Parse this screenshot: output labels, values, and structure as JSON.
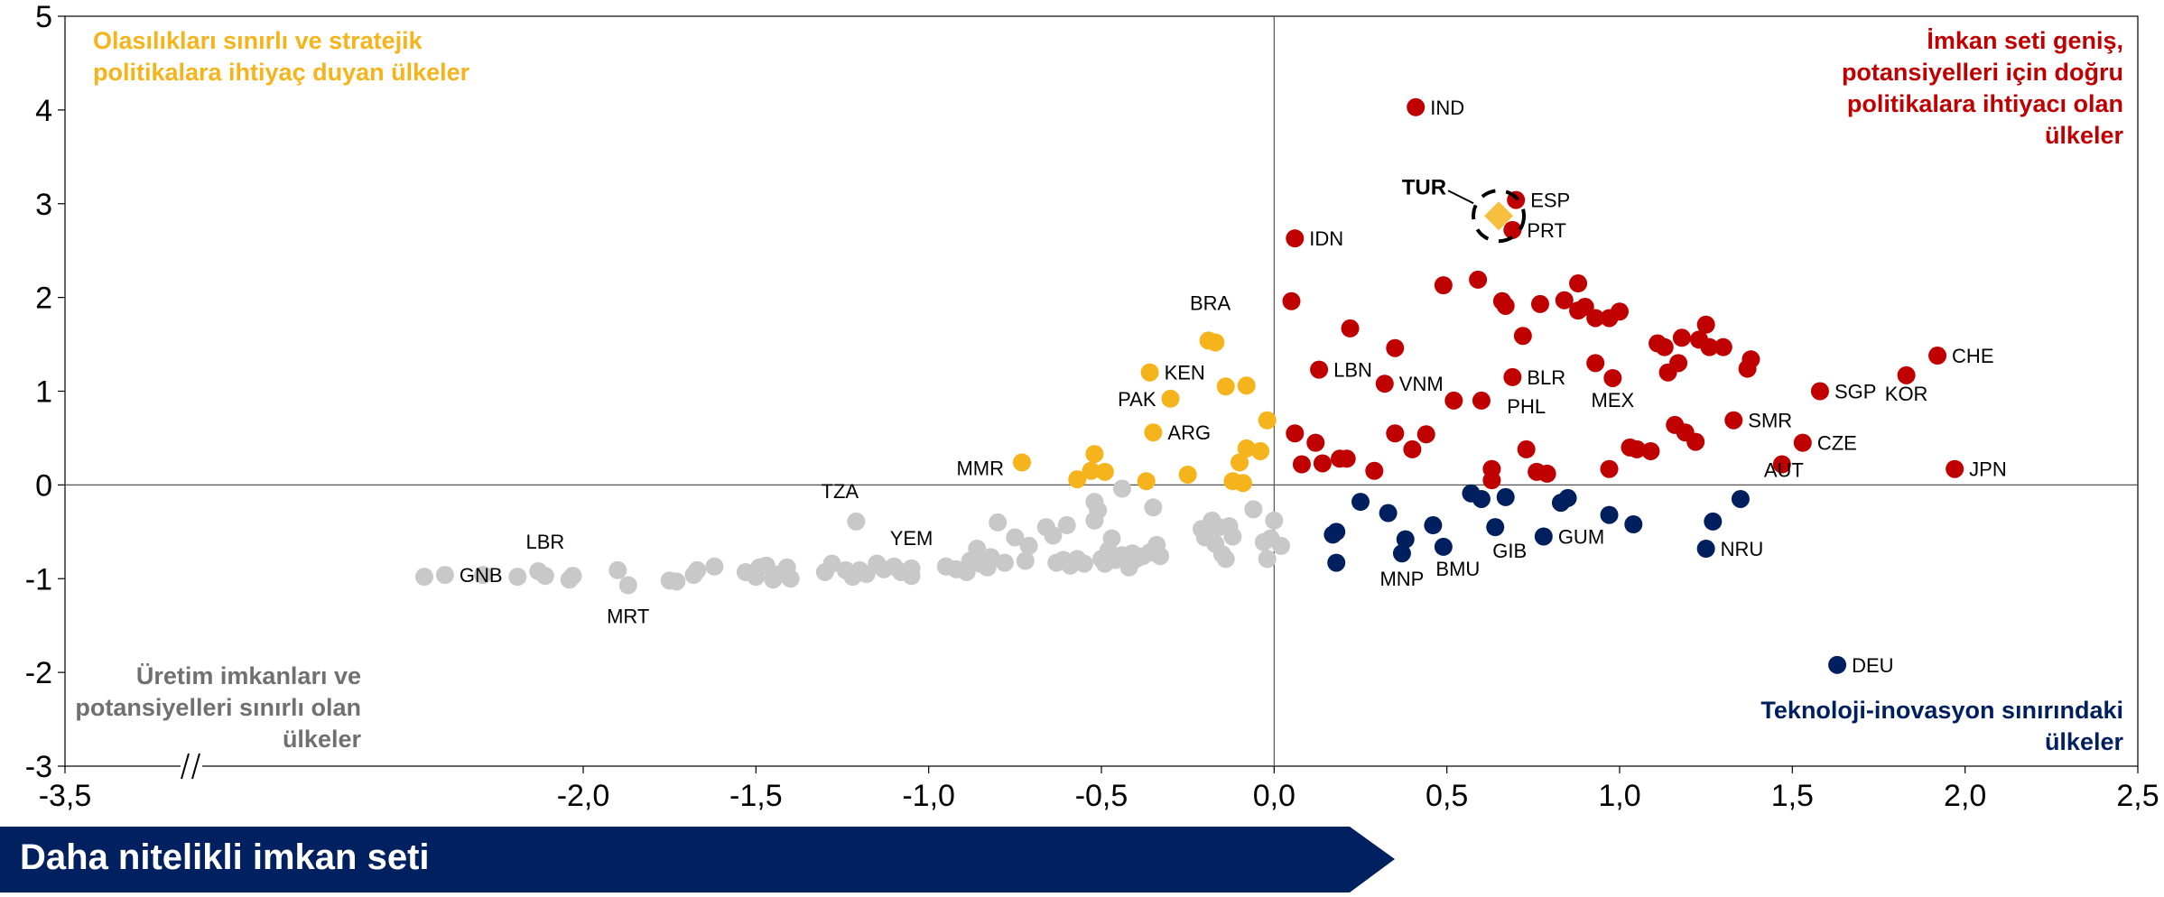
{
  "chart_data": {
    "type": "scatter",
    "xlim": [
      -3.5,
      2.5
    ],
    "ylim": [
      -3,
      5
    ],
    "x_ticks": [
      "-3,5",
      "-2,0",
      "-1,5",
      "-1,0",
      "-0,5",
      "0,0",
      "0,5",
      "1,0",
      "1,5",
      "2,0",
      "2,5"
    ],
    "y_ticks": [
      "5",
      "4",
      "3",
      "2",
      "1",
      "0",
      "-1",
      "-2",
      "-3"
    ],
    "axis_break_symbol": "//",
    "colors": {
      "yellow": "#f5b41c",
      "red": "#c00000",
      "navy": "#001f5f",
      "gray": "#c8c8c8"
    },
    "quadrant_labels": {
      "top_left": "Olasılıkları sınırlı ve stratejik politikalara ihtiyaç duyan ülkeler",
      "top_right": "İmkan seti geniş, potansiyelleri için doğru politikalara ihtiyacı olan ülkeler",
      "bottom_left": "Üretim imkanları ve potansiyelleri sınırlı olan ülkeler",
      "bottom_right": "Teknoloji-inovasyon sınırındaki ülkeler"
    },
    "highlight": {
      "label": "TUR",
      "x": 0.65,
      "y": 2.87
    },
    "labeled_points": [
      {
        "label": "IND",
        "x": 0.41,
        "y": 4.03,
        "group": "red"
      },
      {
        "label": "ESP",
        "x": 0.7,
        "y": 3.04,
        "group": "red"
      },
      {
        "label": "PRT",
        "x": 0.69,
        "y": 2.72,
        "group": "red"
      },
      {
        "label": "IDN",
        "x": 0.06,
        "y": 2.63,
        "group": "red"
      },
      {
        "label": "LBN",
        "x": 0.13,
        "y": 1.23,
        "group": "red"
      },
      {
        "label": "VNM",
        "x": 0.32,
        "y": 1.08,
        "group": "red"
      },
      {
        "label": "BLR",
        "x": 0.69,
        "y": 1.15,
        "group": "red"
      },
      {
        "label": "MEX",
        "x": 0.98,
        "y": 1.14,
        "group": "red"
      },
      {
        "label": "CHE",
        "x": 1.92,
        "y": 1.38,
        "group": "red"
      },
      {
        "label": "SGP",
        "x": 1.58,
        "y": 1.0,
        "group": "red"
      },
      {
        "label": "KOR",
        "x": 1.83,
        "y": 1.17,
        "group": "red"
      },
      {
        "label": "SMR",
        "x": 1.33,
        "y": 0.69,
        "group": "red"
      },
      {
        "label": "CZE",
        "x": 1.53,
        "y": 0.45,
        "group": "red"
      },
      {
        "label": "JPN",
        "x": 1.97,
        "y": 0.17,
        "group": "red"
      },
      {
        "label": "AUT",
        "x": 1.47,
        "y": 0.22,
        "group": "red"
      },
      {
        "label": "PHL",
        "x": 0.73,
        "y": 0.38,
        "group": "red"
      },
      {
        "label": "BRA",
        "x": -0.19,
        "y": 1.54,
        "group": "yellow"
      },
      {
        "label": "KEN",
        "x": -0.36,
        "y": 1.2,
        "group": "yellow"
      },
      {
        "label": "PAK",
        "x": -0.3,
        "y": 0.92,
        "group": "yellow"
      },
      {
        "label": "ARG",
        "x": -0.35,
        "y": 0.56,
        "group": "yellow"
      },
      {
        "label": "MMR",
        "x": -0.73,
        "y": 0.24,
        "group": "yellow"
      },
      {
        "label": "MNP",
        "x": 0.37,
        "y": -0.73,
        "group": "navy"
      },
      {
        "label": "BMU",
        "x": 0.49,
        "y": -0.66,
        "group": "navy"
      },
      {
        "label": "GIB",
        "x": 0.64,
        "y": -0.45,
        "group": "navy"
      },
      {
        "label": "GUM",
        "x": 0.78,
        "y": -0.55,
        "group": "navy"
      },
      {
        "label": "NRU",
        "x": 1.25,
        "y": -0.68,
        "group": "navy"
      },
      {
        "label": "DEU",
        "x": 1.63,
        "y": -1.92,
        "group": "navy"
      },
      {
        "label": "TZA",
        "x": -1.21,
        "y": -0.39,
        "group": "gray"
      },
      {
        "label": "YEM",
        "x": -1.05,
        "y": -0.89,
        "group": "gray"
      },
      {
        "label": "LBR",
        "x": -2.11,
        "y": -0.97,
        "group": "gray"
      },
      {
        "label": "GNB",
        "x": -2.4,
        "y": -0.96,
        "group": "gray"
      },
      {
        "label": "MRT",
        "x": -1.87,
        "y": -1.07,
        "group": "gray"
      }
    ],
    "red_points": [
      [
        0.05,
        1.96
      ],
      [
        0.22,
        1.67
      ],
      [
        0.35,
        1.46
      ],
      [
        0.49,
        2.13
      ],
      [
        0.59,
        2.19
      ],
      [
        0.66,
        1.96
      ],
      [
        0.67,
        1.91
      ],
      [
        0.72,
        1.59
      ],
      [
        0.77,
        1.93
      ],
      [
        0.84,
        1.97
      ],
      [
        0.88,
        2.15
      ],
      [
        0.88,
        1.86
      ],
      [
        0.9,
        1.9
      ],
      [
        0.93,
        1.78
      ],
      [
        0.97,
        1.78
      ],
      [
        1.0,
        1.85
      ],
      [
        0.93,
        1.3
      ],
      [
        1.11,
        1.51
      ],
      [
        1.13,
        1.47
      ],
      [
        1.14,
        1.2
      ],
      [
        1.17,
        1.3
      ],
      [
        1.18,
        1.57
      ],
      [
        1.23,
        1.55
      ],
      [
        1.25,
        1.71
      ],
      [
        1.26,
        1.47
      ],
      [
        1.3,
        1.47
      ],
      [
        1.37,
        1.24
      ],
      [
        1.38,
        1.34
      ],
      [
        0.52,
        0.9
      ],
      [
        0.6,
        0.9
      ],
      [
        0.06,
        0.55
      ],
      [
        0.08,
        0.22
      ],
      [
        0.12,
        0.45
      ],
      [
        0.14,
        0.23
      ],
      [
        0.19,
        0.28
      ],
      [
        0.21,
        0.28
      ],
      [
        0.29,
        0.15
      ],
      [
        0.35,
        0.55
      ],
      [
        0.4,
        0.38
      ],
      [
        0.44,
        0.54
      ],
      [
        0.63,
        0.17
      ],
      [
        0.63,
        0.05
      ],
      [
        0.76,
        0.14
      ],
      [
        0.79,
        0.12
      ],
      [
        0.97,
        0.17
      ],
      [
        1.03,
        0.4
      ],
      [
        1.05,
        0.38
      ],
      [
        1.09,
        0.36
      ],
      [
        1.16,
        0.64
      ],
      [
        1.19,
        0.56
      ],
      [
        1.22,
        0.46
      ]
    ],
    "navy_points": [
      [
        0.17,
        -0.53
      ],
      [
        0.18,
        -0.83
      ],
      [
        0.18,
        -0.5
      ],
      [
        0.25,
        -0.18
      ],
      [
        0.33,
        -0.3
      ],
      [
        0.38,
        -0.58
      ],
      [
        0.46,
        -0.43
      ],
      [
        0.57,
        -0.09
      ],
      [
        0.6,
        -0.15
      ],
      [
        0.67,
        -0.13
      ],
      [
        0.83,
        -0.19
      ],
      [
        0.85,
        -0.14
      ],
      [
        0.97,
        -0.32
      ],
      [
        1.04,
        -0.42
      ],
      [
        1.27,
        -0.39
      ],
      [
        1.35,
        -0.15
      ]
    ],
    "yellow_points": [
      [
        -0.52,
        0.33
      ],
      [
        -0.53,
        0.15
      ],
      [
        -0.49,
        0.14
      ],
      [
        -0.57,
        0.06
      ],
      [
        -0.37,
        0.04
      ],
      [
        -0.25,
        0.11
      ],
      [
        -0.17,
        1.52
      ],
      [
        -0.14,
        1.05
      ],
      [
        -0.08,
        1.06
      ],
      [
        -0.12,
        0.04
      ],
      [
        -0.1,
        0.24
      ],
      [
        -0.09,
        0.02
      ],
      [
        -0.08,
        0.39
      ],
      [
        -0.04,
        0.36
      ],
      [
        -0.02,
        0.69
      ]
    ],
    "gray_points": [
      [
        -2.46,
        -0.98
      ],
      [
        -2.29,
        -0.96
      ],
      [
        -2.19,
        -0.98
      ],
      [
        -2.13,
        -0.92
      ],
      [
        -2.04,
        -1.01
      ],
      [
        -2.03,
        -0.97
      ],
      [
        -1.9,
        -0.91
      ],
      [
        -1.75,
        -1.02
      ],
      [
        -1.73,
        -1.03
      ],
      [
        -1.68,
        -0.96
      ],
      [
        -1.67,
        -0.91
      ],
      [
        -1.62,
        -0.87
      ],
      [
        -1.53,
        -0.93
      ],
      [
        -1.5,
        -0.98
      ],
      [
        -1.49,
        -0.88
      ],
      [
        -1.47,
        -0.86
      ],
      [
        -1.45,
        -1.01
      ],
      [
        -1.43,
        -0.95
      ],
      [
        -1.41,
        -0.88
      ],
      [
        -1.4,
        -1.0
      ],
      [
        -1.3,
        -0.93
      ],
      [
        -1.28,
        -0.84
      ],
      [
        -1.24,
        -0.91
      ],
      [
        -1.22,
        -0.98
      ],
      [
        -1.2,
        -0.91
      ],
      [
        -1.18,
        -0.95
      ],
      [
        -1.15,
        -0.84
      ],
      [
        -1.13,
        -0.9
      ],
      [
        -1.1,
        -0.87
      ],
      [
        -1.08,
        -0.93
      ],
      [
        -1.05,
        -0.97
      ],
      [
        -0.95,
        -0.87
      ],
      [
        -0.92,
        -0.9
      ],
      [
        -0.89,
        -0.93
      ],
      [
        -0.88,
        -0.81
      ],
      [
        -0.86,
        -0.68
      ],
      [
        -0.85,
        -0.84
      ],
      [
        -0.83,
        -0.88
      ],
      [
        -0.82,
        -0.77
      ],
      [
        -0.8,
        -0.4
      ],
      [
        -0.78,
        -0.83
      ],
      [
        -0.75,
        -0.56
      ],
      [
        -0.72,
        -0.81
      ],
      [
        -0.71,
        -0.65
      ],
      [
        -0.66,
        -0.45
      ],
      [
        -0.64,
        -0.54
      ],
      [
        -0.63,
        -0.83
      ],
      [
        -0.61,
        -0.8
      ],
      [
        -0.6,
        -0.43
      ],
      [
        -0.59,
        -0.86
      ],
      [
        -0.57,
        -0.79
      ],
      [
        -0.55,
        -0.84
      ],
      [
        -0.52,
        -0.18
      ],
      [
        -0.52,
        -0.38
      ],
      [
        -0.51,
        -0.27
      ],
      [
        -0.5,
        -0.79
      ],
      [
        -0.49,
        -0.84
      ],
      [
        -0.48,
        -0.7
      ],
      [
        -0.47,
        -0.57
      ],
      [
        -0.46,
        -0.8
      ],
      [
        -0.44,
        -0.75
      ],
      [
        -0.42,
        -0.88
      ],
      [
        -0.41,
        -0.73
      ],
      [
        -0.4,
        -0.79
      ],
      [
        -0.38,
        -0.76
      ],
      [
        -0.36,
        -0.72
      ],
      [
        -0.35,
        -0.24
      ],
      [
        -0.34,
        -0.64
      ],
      [
        -0.33,
        -0.76
      ],
      [
        -0.21,
        -0.47
      ],
      [
        -0.2,
        -0.56
      ],
      [
        -0.18,
        -0.38
      ],
      [
        -0.17,
        -0.63
      ],
      [
        -0.16,
        -0.45
      ],
      [
        -0.15,
        -0.74
      ],
      [
        -0.14,
        -0.79
      ],
      [
        -0.13,
        -0.44
      ],
      [
        -0.12,
        -0.55
      ],
      [
        -0.06,
        -0.26
      ],
      [
        -0.03,
        -0.61
      ],
      [
        -0.02,
        -0.79
      ],
      [
        -0.01,
        -0.57
      ],
      [
        0.0,
        -0.38
      ],
      [
        0.02,
        -0.65
      ],
      [
        -0.44,
        -0.04
      ]
    ]
  },
  "arrow": {
    "label": "Daha nitelikli imkan seti",
    "color": "#002060"
  }
}
